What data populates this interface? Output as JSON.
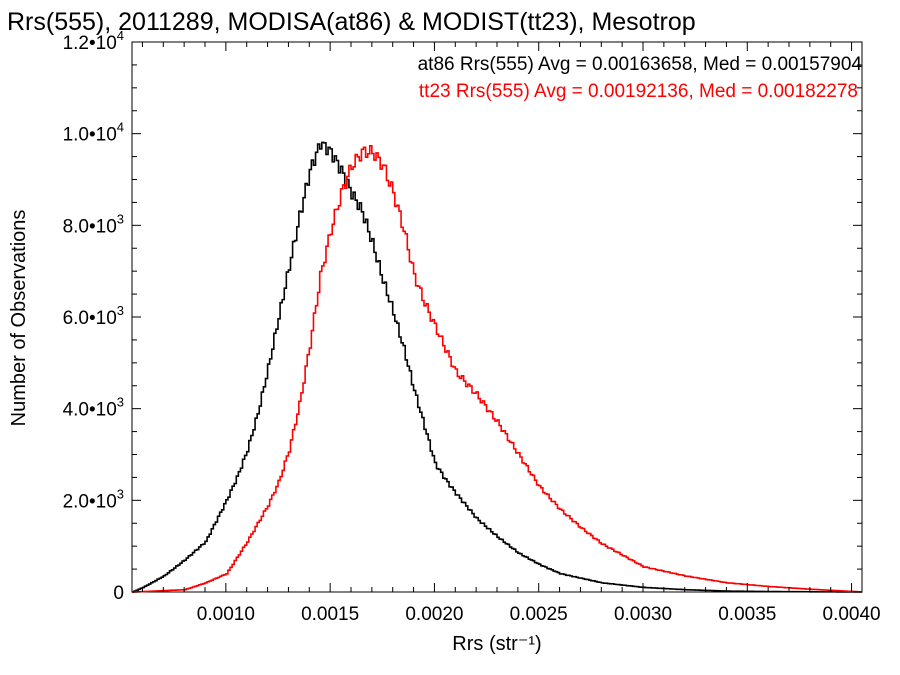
{
  "chart_data": {
    "type": "histogram-step",
    "title": "Rrs(555), 2011289, MODISA(at86) & MODIST(tt23), Mesotrop",
    "xlabel": "Rrs (str⁻¹)",
    "ylabel": "Number of Observations",
    "xlim": [
      0.00055,
      0.00405
    ],
    "ylim": [
      0,
      12000
    ],
    "x_ticks": [
      {
        "value": 0.001,
        "label": "0.0010"
      },
      {
        "value": 0.0015,
        "label": "0.0015"
      },
      {
        "value": 0.002,
        "label": "0.0020"
      },
      {
        "value": 0.0025,
        "label": "0.0025"
      },
      {
        "value": 0.003,
        "label": "0.0030"
      },
      {
        "value": 0.0035,
        "label": "0.0035"
      },
      {
        "value": 0.004,
        "label": "0.0040"
      }
    ],
    "y_ticks": [
      {
        "value": 0,
        "mantissa": "0",
        "exp": ""
      },
      {
        "value": 2000,
        "mantissa": "2.0•10",
        "exp": "3"
      },
      {
        "value": 4000,
        "mantissa": "4.0•10",
        "exp": "3"
      },
      {
        "value": 6000,
        "mantissa": "6.0•10",
        "exp": "3"
      },
      {
        "value": 8000,
        "mantissa": "8.0•10",
        "exp": "3"
      },
      {
        "value": 10000,
        "mantissa": "1.0•10",
        "exp": "4"
      },
      {
        "value": 12000,
        "mantissa": "1.2•10",
        "exp": "4"
      }
    ],
    "annotations": [
      {
        "text": "at86 Rrs(555) Avg = 0.00163658, Med = 0.00157904",
        "color": "#000000"
      },
      {
        "text": "tt23 Rrs(555) Avg = 0.00192136, Med = 0.00182278",
        "color": "#ff0000"
      }
    ],
    "series": [
      {
        "color": "#000000",
        "x": [
          0.00055,
          0.0006,
          0.0007,
          0.0008,
          0.0009,
          0.001,
          0.00105,
          0.0011,
          0.00115,
          0.0012,
          0.00125,
          0.0013,
          0.00135,
          0.0014,
          0.00145,
          0.0015,
          0.00155,
          0.0016,
          0.00165,
          0.0017,
          0.00175,
          0.0018,
          0.00185,
          0.0019,
          0.00195,
          0.002,
          0.00205,
          0.0021,
          0.0022,
          0.0023,
          0.0024,
          0.0025,
          0.0026,
          0.0028,
          0.003,
          0.0032,
          0.0034,
          0.0036,
          0.0038,
          0.00405
        ],
        "y": [
          0,
          100,
          350,
          700,
          1100,
          2000,
          2500,
          3100,
          3900,
          4900,
          6000,
          7100,
          8200,
          9200,
          9800,
          9600,
          9200,
          8700,
          8300,
          7600,
          6800,
          6100,
          5300,
          4400,
          3600,
          2800,
          2450,
          2150,
          1600,
          1200,
          850,
          600,
          400,
          200,
          100,
          50,
          20,
          10,
          5,
          0
        ]
      },
      {
        "color": "#ff0000",
        "x": [
          0.00055,
          0.0006,
          0.0008,
          0.0009,
          0.001,
          0.00105,
          0.0011,
          0.00115,
          0.0012,
          0.00125,
          0.0013,
          0.00135,
          0.0014,
          0.00145,
          0.0015,
          0.00155,
          0.0016,
          0.00165,
          0.0017,
          0.00175,
          0.0018,
          0.00185,
          0.0019,
          0.00195,
          0.002,
          0.0021,
          0.0022,
          0.0023,
          0.0024,
          0.0025,
          0.0026,
          0.0027,
          0.0028,
          0.0029,
          0.003,
          0.0032,
          0.0034,
          0.0036,
          0.0038,
          0.00405
        ],
        "y": [
          0,
          10,
          50,
          200,
          400,
          750,
          1100,
          1500,
          1900,
          2400,
          3100,
          4100,
          5400,
          6900,
          7900,
          8700,
          9300,
          9600,
          9600,
          9300,
          8700,
          7900,
          6900,
          6300,
          5800,
          4800,
          4300,
          3700,
          3000,
          2300,
          1800,
          1400,
          1050,
          800,
          550,
          350,
          200,
          120,
          60,
          0
        ]
      }
    ]
  }
}
